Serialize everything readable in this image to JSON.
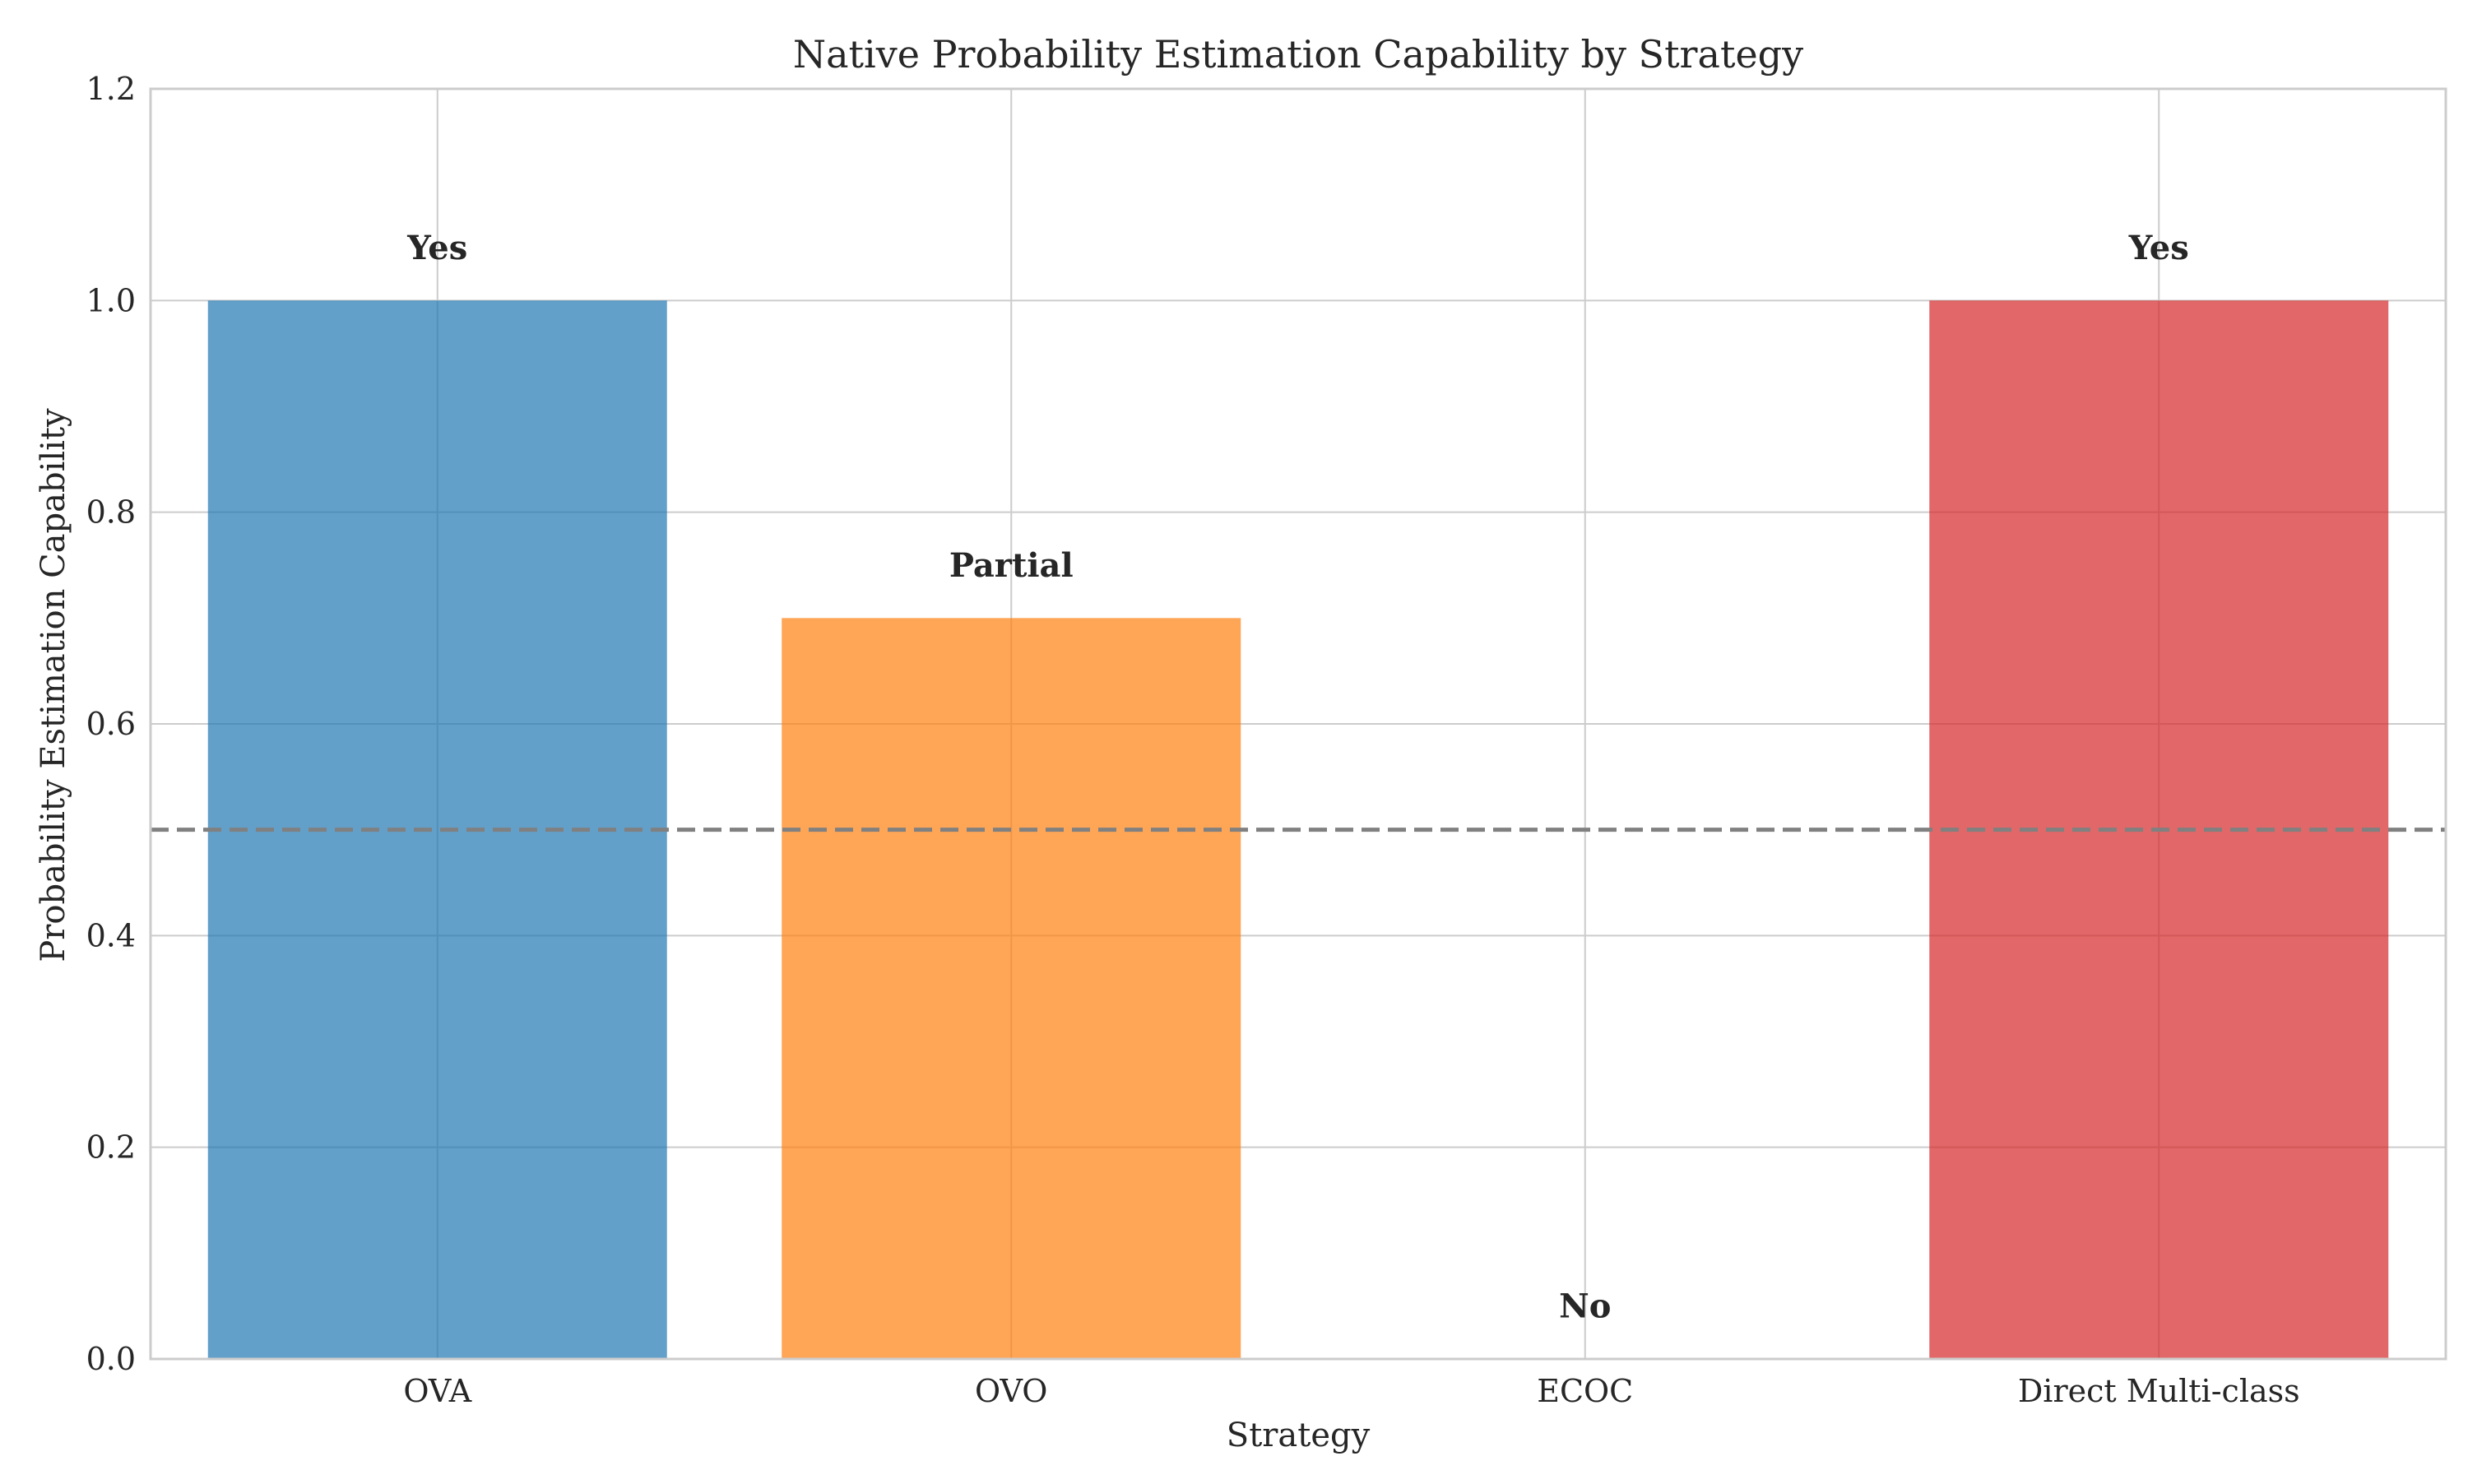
{
  "chart_data": {
    "type": "bar",
    "title": "Native Probability Estimation Capability by Strategy",
    "xlabel": "Strategy",
    "ylabel": "Probability Estimation Capability",
    "categories": [
      "OVA",
      "OVO",
      "ECOC",
      "Direct Multi-class"
    ],
    "values": [
      1.0,
      0.7,
      0.0,
      1.0
    ],
    "bar_labels": [
      "Yes",
      "Partial",
      "No",
      "Yes"
    ],
    "colors": [
      "#1f77b4",
      "#ff7f0e",
      "#2ca02c",
      "#d62728"
    ],
    "bar_opacity": 0.7,
    "ylim": [
      0,
      1.2
    ],
    "yticks": [
      "0.0",
      "0.2",
      "0.4",
      "0.6",
      "0.8",
      "1.0",
      "1.2"
    ],
    "reference_line": {
      "y": 0.5,
      "style": "dashed",
      "color": "#808080"
    },
    "grid": true,
    "legend": "none"
  }
}
